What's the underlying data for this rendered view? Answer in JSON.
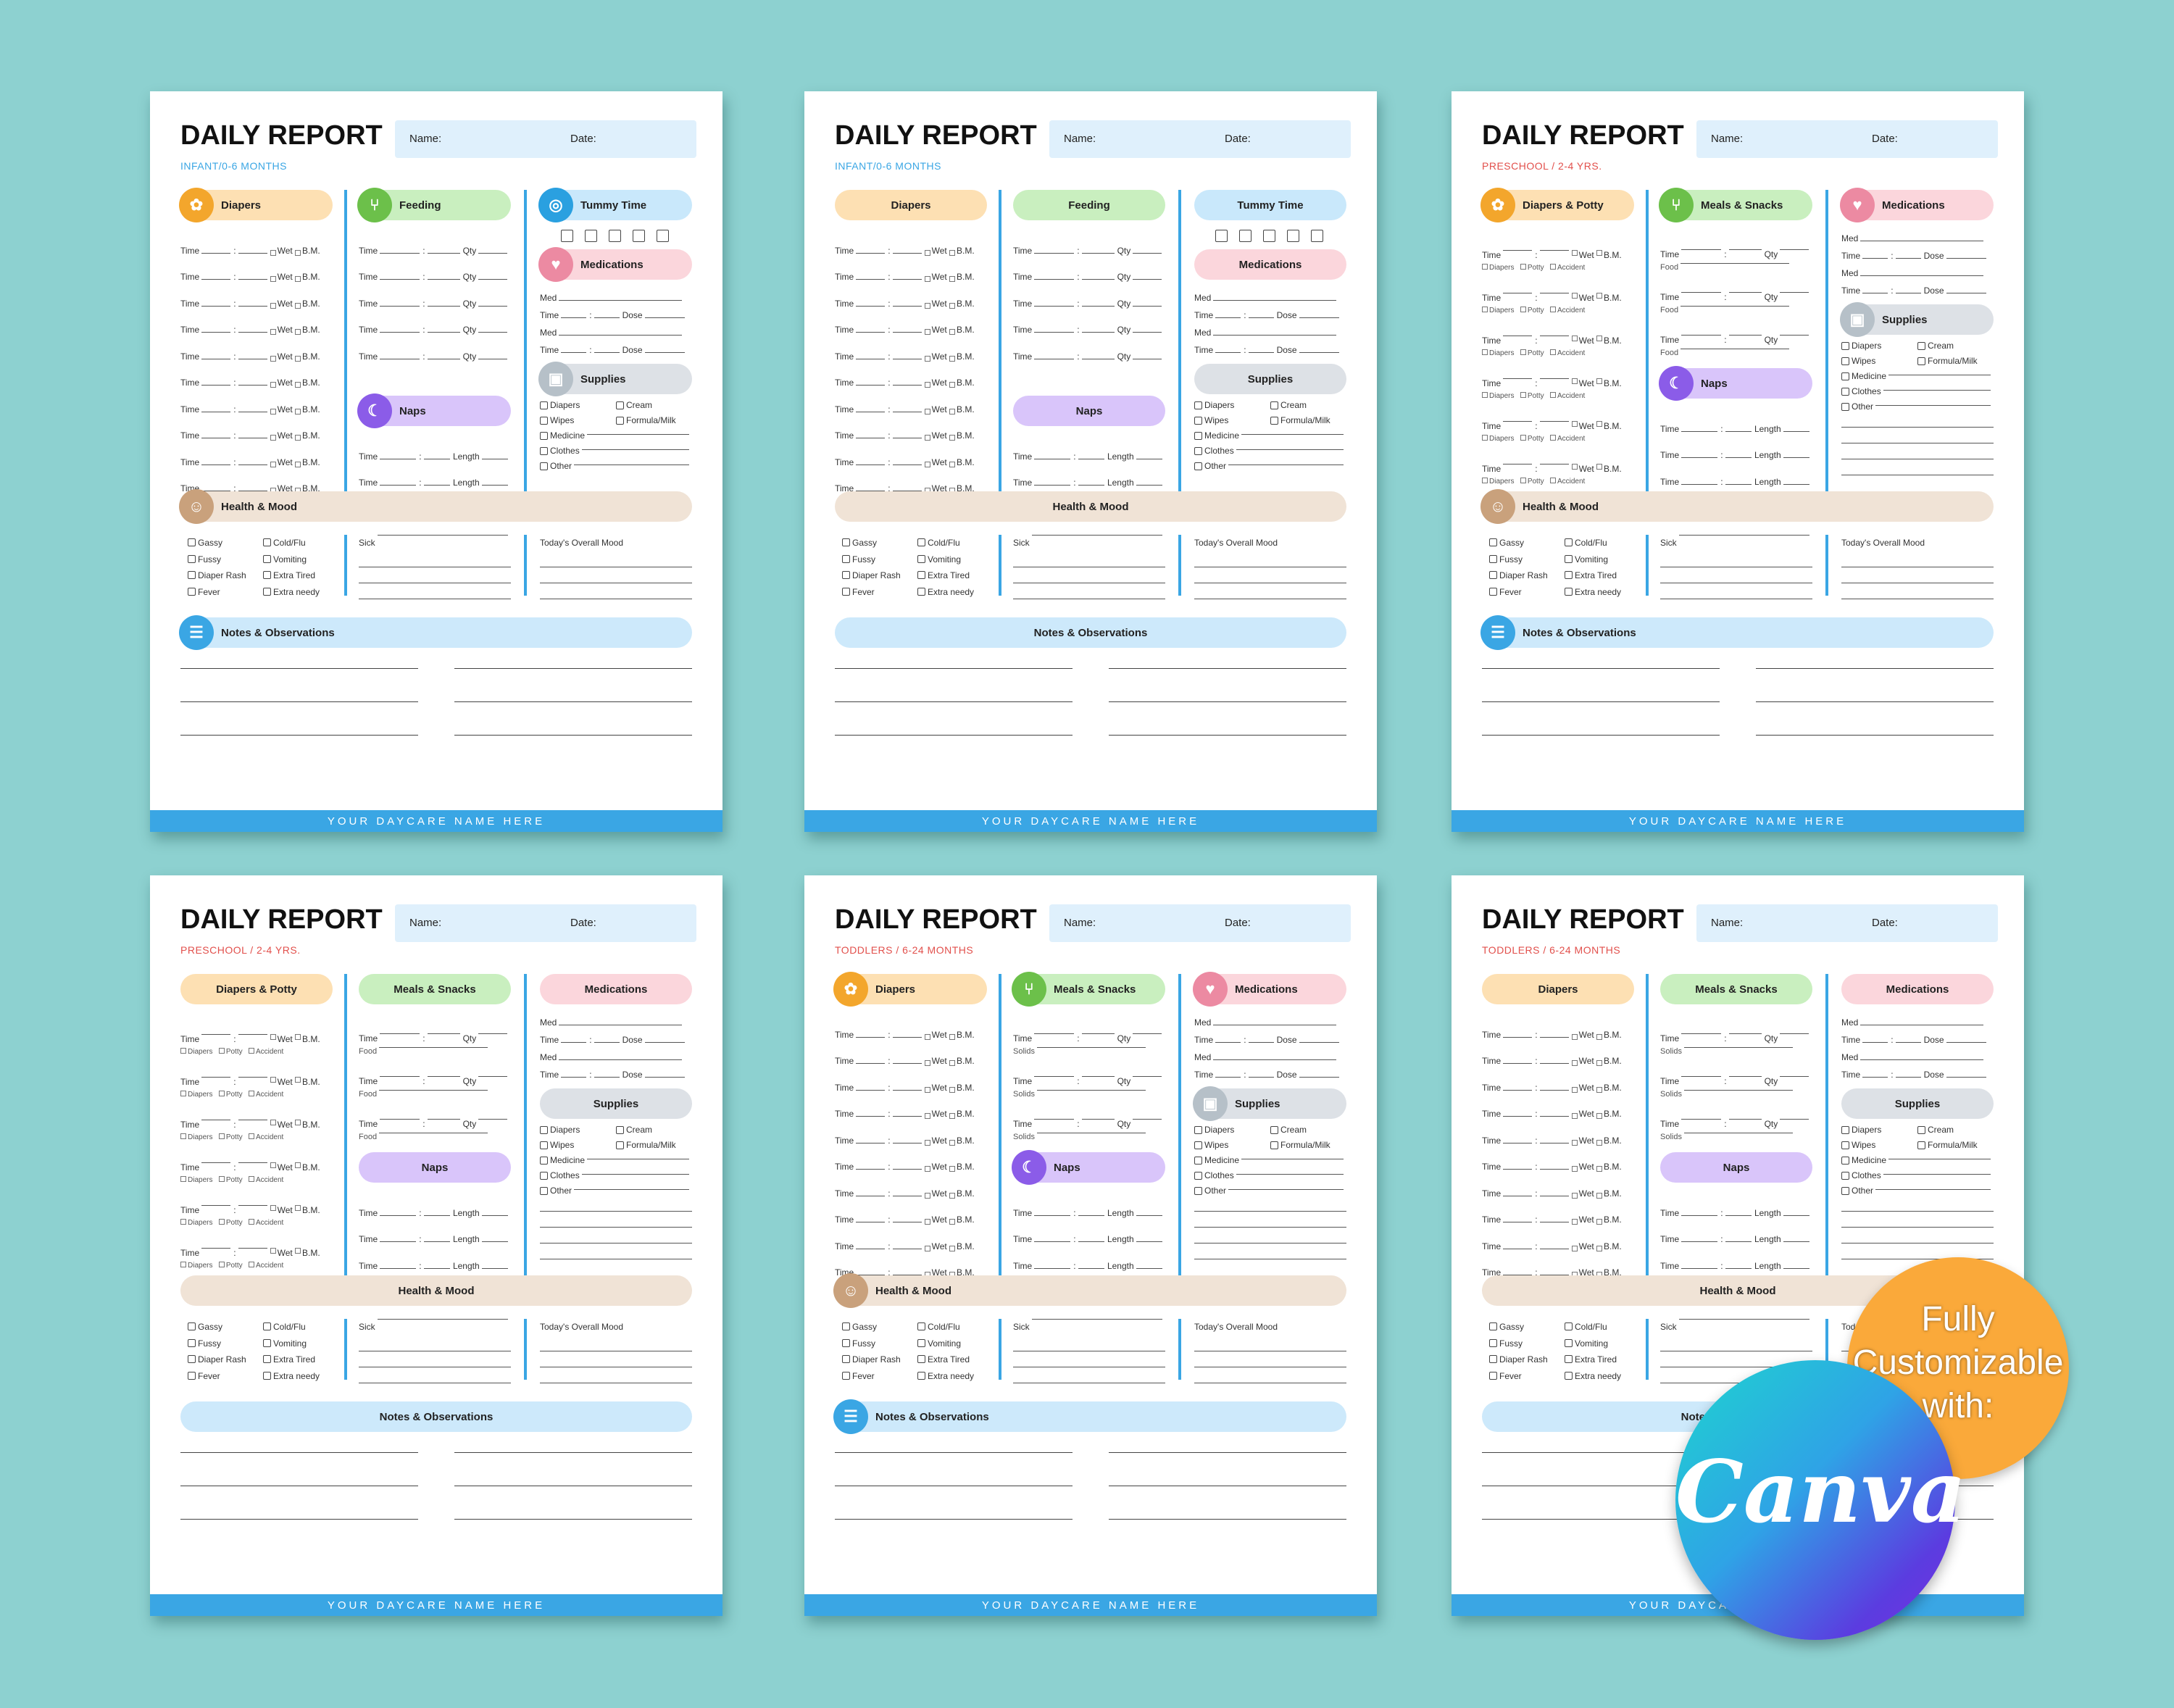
{
  "footer": "YOUR DAYCARE NAME HERE",
  "header": {
    "title": "DAILY REPORT",
    "name_label": "Name:",
    "date_label": "Date:"
  },
  "labels": {
    "time": "Time",
    "qty": "Qty",
    "length": "Length",
    "dose": "Dose",
    "med": "Med",
    "wet": "Wet",
    "bm": "B.M.",
    "food": "Food",
    "solids": "Solids",
    "diapers_opt": "Diapers",
    "potty_opt": "Potty",
    "accident_opt": "Accident",
    "colon": ":"
  },
  "sections": {
    "diapers": "Diapers",
    "diapers_potty": "Diapers & Potty",
    "feeding": "Feeding",
    "meals_snacks": "Meals & Snacks",
    "tummy_time": "Tummy Time",
    "medications": "Medications",
    "naps": "Naps",
    "supplies": "Supplies",
    "health_mood": "Health & Mood",
    "notes": "Notes & Observations"
  },
  "supplies_items": [
    "Diapers",
    "Cream",
    "Wipes",
    "Formula/Milk",
    "Medicine",
    "Clothes",
    "Other"
  ],
  "health_items": [
    "Gassy",
    "Cold/Flu",
    "Fussy",
    "Vomiting",
    "Diaper Rash",
    "Extra Tired",
    "Fever",
    "Extra needy"
  ],
  "health_sick": "Sick",
  "health_mood_label": "Today's Overall Mood",
  "sheets": [
    {
      "subtitle": "INFANT/0-6 MONTHS",
      "subtitle_color": "#3aa6e4",
      "icons": true,
      "variant": "infant"
    },
    {
      "subtitle": "INFANT/0-6 MONTHS",
      "subtitle_color": "#3aa6e4",
      "icons": false,
      "variant": "infant"
    },
    {
      "subtitle": "PRESCHOOL / 2-4 YRS.",
      "subtitle_color": "#e2504c",
      "icons": true,
      "variant": "preschool"
    },
    {
      "subtitle": "PRESCHOOL / 2-4 YRS.",
      "subtitle_color": "#e2504c",
      "icons": false,
      "variant": "preschool"
    },
    {
      "subtitle": "TODDLERS / 6-24 MONTHS",
      "subtitle_color": "#e2504c",
      "icons": true,
      "variant": "toddler"
    },
    {
      "subtitle": "TODDLERS / 6-24 MONTHS",
      "subtitle_color": "#e2504c",
      "icons": false,
      "variant": "toddler"
    }
  ],
  "badge": {
    "line1": "Fully",
    "line2": "Customizable",
    "line3": "with:",
    "brand": "Canva"
  },
  "icon_names": {
    "diapers": "diaper-icon",
    "feeding": "bottle-icon",
    "meals": "cutlery-icon",
    "tummy": "target-icon",
    "medications": "heart-icon",
    "naps": "moon-icon",
    "supplies": "baby-bottle-icon",
    "health": "smiley-icon",
    "notes": "notepad-icon"
  },
  "colors": {
    "background": "#8dd1d0",
    "accent_blue": "#3aa6e4",
    "badge_orange": "#faa93a",
    "subtitle_red": "#e2504c"
  }
}
